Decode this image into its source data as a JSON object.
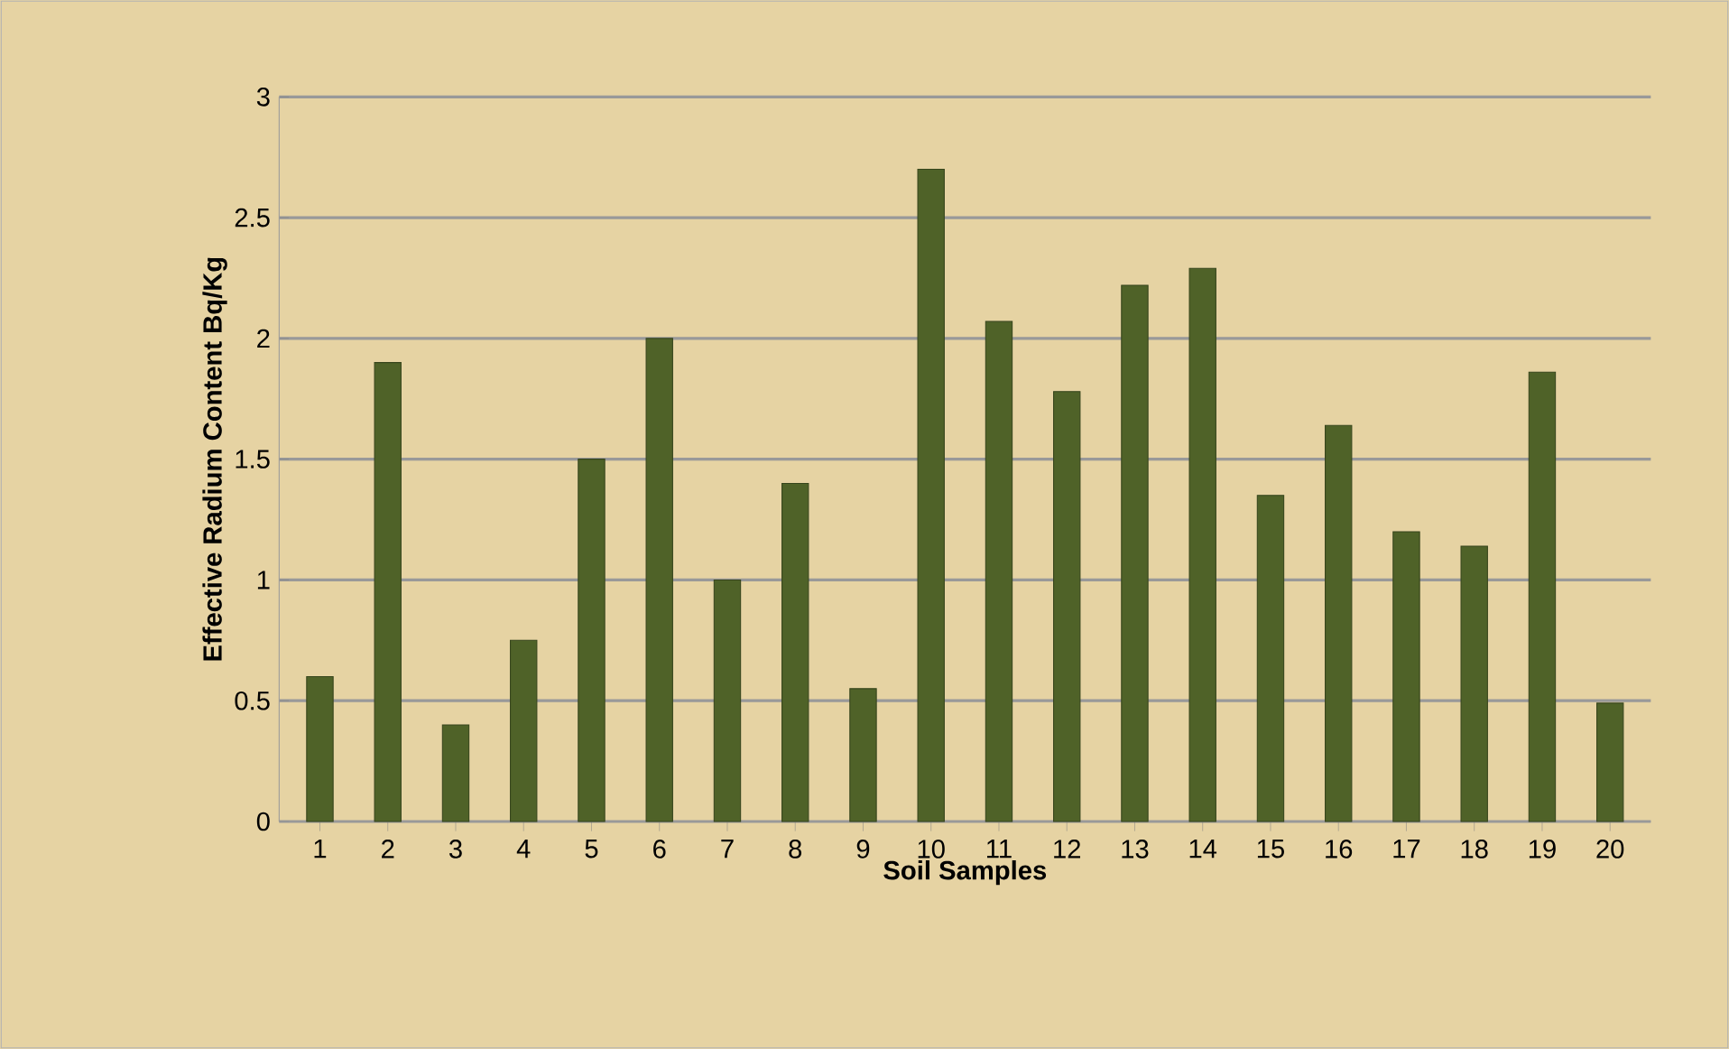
{
  "chart_data": {
    "type": "bar",
    "xlabel": "Soil Samples",
    "ylabel": "Effective Radium Content    Bq/Kg",
    "categories": [
      "1",
      "2",
      "3",
      "4",
      "5",
      "6",
      "7",
      "8",
      "9",
      "10",
      "11",
      "12",
      "13",
      "14",
      "15",
      "16",
      "17",
      "18",
      "19",
      "20"
    ],
    "values": [
      0.6,
      1.9,
      0.4,
      0.75,
      1.5,
      2.0,
      1.0,
      1.4,
      0.55,
      2.7,
      2.07,
      1.78,
      2.22,
      2.29,
      1.35,
      1.64,
      1.2,
      1.14,
      1.86,
      0.49
    ],
    "color": "#4f6228",
    "ylim": [
      0,
      3
    ],
    "yticks": [
      0,
      0.5,
      1,
      1.5,
      2,
      2.5,
      3
    ],
    "grid": "y"
  }
}
